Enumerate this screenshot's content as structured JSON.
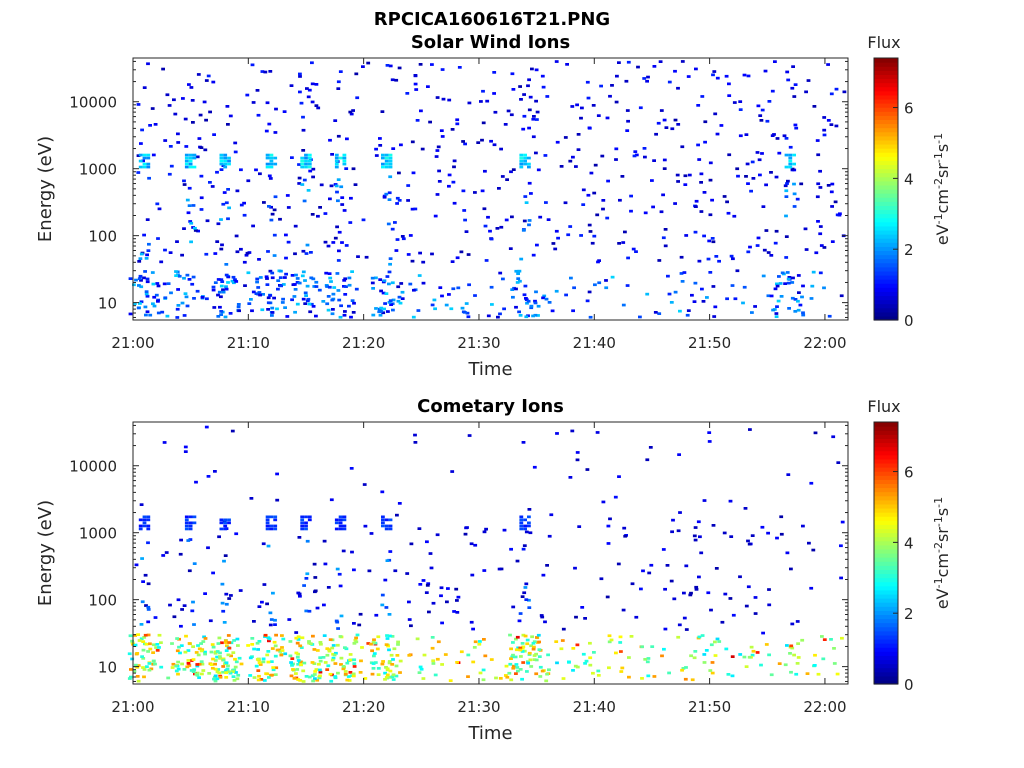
{
  "figure": {
    "title": "RPCICA160616T21.PNG"
  },
  "chart_data": [
    {
      "type": "heatmap",
      "title": "Solar Wind Ions",
      "xlabel": "Time",
      "ylabel": "Energy (eV)",
      "x_range": [
        "21:00",
        "22:02"
      ],
      "x_ticks": [
        "21:00",
        "21:10",
        "21:20",
        "21:30",
        "21:40",
        "21:50",
        "22:00"
      ],
      "y_scale": "log",
      "y_range": [
        5.5,
        45000
      ],
      "y_ticks": [
        10,
        100,
        1000,
        10000
      ],
      "y_tick_labels": [
        "10",
        "100",
        "1000",
        "10000"
      ],
      "colorbar": {
        "label": "Flux",
        "unit": "eV-1cm-2sr-1s-1",
        "range": [
          0,
          7.4
        ],
        "ticks": [
          0,
          2,
          4,
          6
        ],
        "tick_labels": [
          "0",
          "2",
          "4",
          "6"
        ],
        "colormap": "jet"
      },
      "recurring_bursts": [
        {
          "time": "21:01",
          "energy_eV": 1300,
          "flux": 2.5
        },
        {
          "time": "21:05",
          "energy_eV": 1300,
          "flux": 2.5
        },
        {
          "time": "21:08",
          "energy_eV": 1300,
          "flux": 2.5
        },
        {
          "time": "21:12",
          "energy_eV": 1300,
          "flux": 2.5
        },
        {
          "time": "21:15",
          "energy_eV": 1300,
          "flux": 2.5
        },
        {
          "time": "21:18",
          "energy_eV": 1300,
          "flux": 2.5
        },
        {
          "time": "21:22",
          "energy_eV": 1300,
          "flux": 2.5
        },
        {
          "time": "21:34",
          "energy_eV": 1300,
          "flux": 2.5
        },
        {
          "time": "21:57",
          "energy_eV": 1300,
          "flux": 2.3
        }
      ],
      "low_energy_band": {
        "energy_eV": [
          6,
          30
        ],
        "flux_typical": [
          0.5,
          2.5
        ]
      },
      "background_flux": [
        0.3,
        1.2
      ]
    },
    {
      "type": "heatmap",
      "title": "Cometary Ions",
      "xlabel": "Time",
      "ylabel": "Energy (eV)",
      "x_range": [
        "21:00",
        "22:02"
      ],
      "x_ticks": [
        "21:00",
        "21:10",
        "21:20",
        "21:30",
        "21:40",
        "21:50",
        "22:00"
      ],
      "y_scale": "log",
      "y_range": [
        5.5,
        45000
      ],
      "y_ticks": [
        10,
        100,
        1000,
        10000
      ],
      "y_tick_labels": [
        "10",
        "100",
        "1000",
        "10000"
      ],
      "colorbar": {
        "label": "Flux",
        "unit": "eV-1cm-2sr-1s-1",
        "range": [
          0,
          7.4
        ],
        "ticks": [
          0,
          2,
          4,
          6
        ],
        "tick_labels": [
          "0",
          "2",
          "4",
          "6"
        ],
        "colormap": "jet"
      },
      "recurring_bursts": [
        {
          "time": "21:01",
          "energy_eV": 1400,
          "flux": 1.3
        },
        {
          "time": "21:05",
          "energy_eV": 1400,
          "flux": 1.3
        },
        {
          "time": "21:08",
          "energy_eV": 1400,
          "flux": 1.3
        },
        {
          "time": "21:12",
          "energy_eV": 1400,
          "flux": 1.3
        },
        {
          "time": "21:15",
          "energy_eV": 1400,
          "flux": 1.3
        },
        {
          "time": "21:18",
          "energy_eV": 1400,
          "flux": 1.3
        },
        {
          "time": "21:22",
          "energy_eV": 1400,
          "flux": 1.3
        },
        {
          "time": "21:34",
          "energy_eV": 1400,
          "flux": 1.3
        }
      ],
      "low_energy_band": {
        "energy_eV": [
          6,
          30
        ],
        "flux_typical": [
          2.5,
          5.5
        ],
        "flux_peak": 6.8
      },
      "background_flux": [
        0.3,
        1.0
      ]
    }
  ]
}
